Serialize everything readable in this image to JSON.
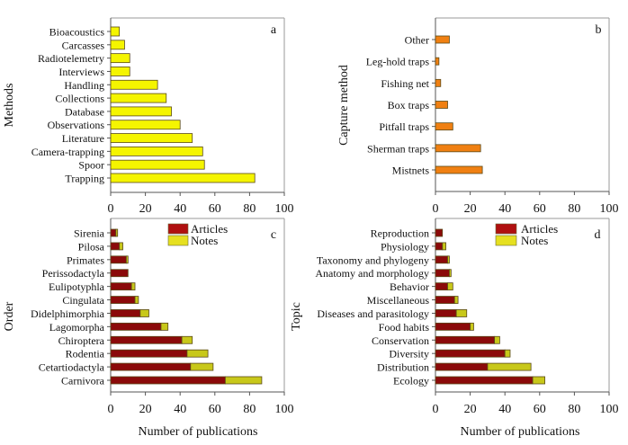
{
  "chart_data": [
    {
      "id": "a",
      "type": "bar",
      "orientation": "horizontal",
      "panel_label": "a",
      "title": "",
      "xlabel": "",
      "ylabel": "Methods",
      "xlim": [
        0,
        100
      ],
      "xticks": [
        0,
        20,
        40,
        60,
        80,
        100
      ],
      "grid": false,
      "categories": [
        "Bioacoustics",
        "Carcasses",
        "Radiotelemetry",
        "Interviews",
        "Handling",
        "Collections",
        "Database",
        "Observations",
        "Literature",
        "Camera-trapping",
        "Spoor",
        "Trapping"
      ],
      "series": [
        {
          "name": "Publications",
          "color": "#f5f500",
          "values": [
            5,
            8,
            11,
            11,
            27,
            32,
            35,
            40,
            47,
            53,
            54,
            83
          ]
        }
      ]
    },
    {
      "id": "b",
      "type": "bar",
      "orientation": "horizontal",
      "panel_label": "b",
      "title": "",
      "xlabel": "",
      "ylabel": "Capture method",
      "xlim": [
        0,
        100
      ],
      "xticks": [
        0,
        20,
        40,
        60,
        80,
        100
      ],
      "grid": false,
      "categories": [
        "Other",
        "Leg-hold traps",
        "Fishing net",
        "Box traps",
        "Pitfall traps",
        "Sherman traps",
        "Mistnets"
      ],
      "series": [
        {
          "name": "Publications",
          "color": "#f08012",
          "values": [
            8,
            2,
            3,
            7,
            10,
            26,
            27
          ]
        }
      ]
    },
    {
      "id": "c",
      "type": "bar",
      "orientation": "horizontal",
      "stacked": true,
      "panel_label": "c",
      "title": "",
      "xlabel": "Number of publications",
      "ylabel": "Order",
      "xlim": [
        0,
        100
      ],
      "xticks": [
        0,
        20,
        40,
        60,
        80,
        100
      ],
      "grid": false,
      "legend": {
        "placement": "top-center",
        "entries": [
          "Articles",
          "Notes"
        ]
      },
      "categories": [
        "Sirenia",
        "Pilosa",
        "Primates",
        "Perissodactyla",
        "Eulipotyphla",
        "Cingulata",
        "Didelphimorphia",
        "Lagomorpha",
        "Chiroptera",
        "Rodentia",
        "Cetartiodactyla",
        "Carnivora"
      ],
      "series": [
        {
          "name": "Articles",
          "color": "#8b0a0a",
          "legend_color": "#b01010",
          "values": [
            3,
            5,
            9,
            10,
            12,
            14,
            17,
            29,
            41,
            44,
            46,
            66
          ]
        },
        {
          "name": "Notes",
          "color": "#c8c81a",
          "legend_color": "#e6e020",
          "values": [
            1,
            2,
            1,
            0,
            2,
            2,
            5,
            4,
            6,
            12,
            13,
            21
          ]
        }
      ]
    },
    {
      "id": "d",
      "type": "bar",
      "orientation": "horizontal",
      "stacked": true,
      "panel_label": "d",
      "title": "",
      "xlabel": "Number of publications",
      "ylabel": "Topic",
      "xlim": [
        0,
        100
      ],
      "xticks": [
        0,
        20,
        40,
        60,
        80,
        100
      ],
      "grid": false,
      "legend": {
        "placement": "top-center",
        "entries": [
          "Articles",
          "Notes"
        ]
      },
      "categories": [
        "Reproduction",
        "Physiology",
        "Taxonomy and phylogeny",
        "Anatomy and morphology",
        "Behavior",
        "Miscellaneous",
        "Diseases and parasitology",
        "Food habits",
        "Conservation",
        "Diversity",
        "Distribution",
        "Ecology"
      ],
      "series": [
        {
          "name": "Articles",
          "color": "#8b0a0a",
          "legend_color": "#b01010",
          "values": [
            4,
            4,
            7,
            8,
            7,
            11,
            12,
            20,
            34,
            40,
            30,
            56
          ]
        },
        {
          "name": "Notes",
          "color": "#c8c81a",
          "legend_color": "#e6e020",
          "values": [
            0,
            2,
            1,
            1,
            3,
            2,
            6,
            2,
            3,
            3,
            25,
            7
          ]
        }
      ]
    }
  ]
}
